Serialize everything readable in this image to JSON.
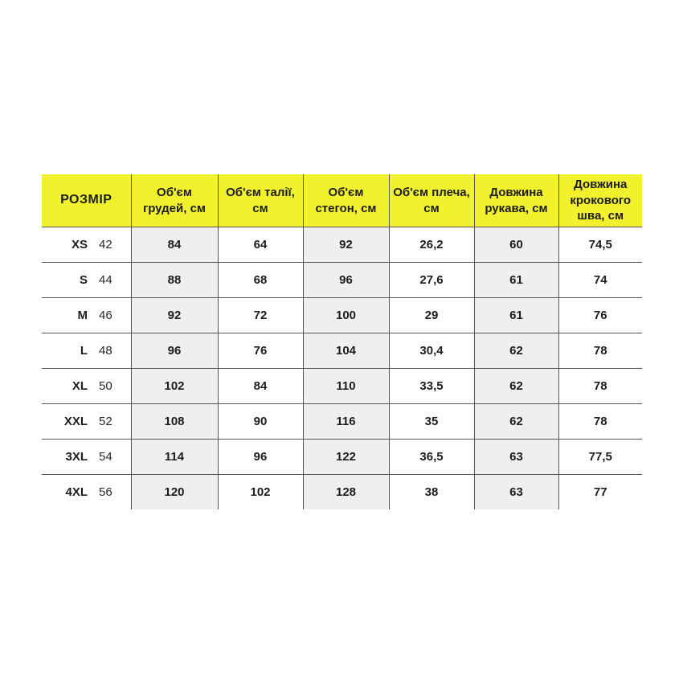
{
  "table": {
    "size_header": "РОЗМІР",
    "columns": [
      "Об'єм грудей, см",
      "Об'єм талії, см",
      "Об'єм стегон, см",
      "Об'єм плеча, см",
      "Довжина рукава, см",
      "Довжина крокового шва, см"
    ],
    "rows": [
      {
        "size": "XS",
        "size_number": "42",
        "values": [
          "84",
          "64",
          "92",
          "26,2",
          "60",
          "74,5"
        ]
      },
      {
        "size": "S",
        "size_number": "44",
        "values": [
          "88",
          "68",
          "96",
          "27,6",
          "61",
          "74"
        ]
      },
      {
        "size": "M",
        "size_number": "46",
        "values": [
          "92",
          "72",
          "100",
          "29",
          "61",
          "76"
        ]
      },
      {
        "size": "L",
        "size_number": "48",
        "values": [
          "96",
          "76",
          "104",
          "30,4",
          "62",
          "78"
        ]
      },
      {
        "size": "XL",
        "size_number": "50",
        "values": [
          "102",
          "84",
          "110",
          "33,5",
          "62",
          "78"
        ]
      },
      {
        "size": "XXL",
        "size_number": "52",
        "values": [
          "108",
          "90",
          "116",
          "35",
          "62",
          "78"
        ]
      },
      {
        "size": "3XL",
        "size_number": "54",
        "values": [
          "114",
          "96",
          "122",
          "36,5",
          "63",
          "77,5"
        ]
      },
      {
        "size": "4XL",
        "size_number": "56",
        "values": [
          "120",
          "102",
          "128",
          "38",
          "63",
          "77"
        ]
      }
    ],
    "striped_value_columns": [
      0,
      2,
      4
    ]
  },
  "colors": {
    "header_bg": "#F2F12E",
    "stripe_bg": "#EFEFEF",
    "border": "#555555",
    "text": "#1d1d1d"
  }
}
